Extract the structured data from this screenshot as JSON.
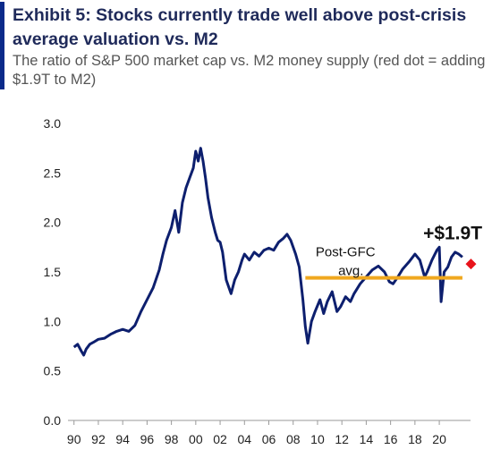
{
  "exhibit": {
    "title": "Exhibit 5: Stocks currently trade well above post-crisis average valuation vs. M2",
    "subtitle": "The ratio of S&P 500 market cap vs. M2 money supply (red dot = adding $1.9T to M2)",
    "accent_color": "#0b2a8a"
  },
  "chart_data": {
    "type": "line",
    "title": "",
    "xlabel": "",
    "ylabel": "",
    "xlim": [
      1989.8,
      2023.3
    ],
    "ylim": [
      0,
      3.0
    ],
    "yticks": [
      0.0,
      0.5,
      1.0,
      1.5,
      2.0,
      2.5,
      3.0
    ],
    "ytick_labels": [
      "0.0",
      "0.5",
      "1.0",
      "1.5",
      "2.0",
      "2.5",
      "3.0"
    ],
    "xticks": [
      1990,
      1992,
      1994,
      1996,
      1998,
      2000,
      2002,
      2004,
      2006,
      2008,
      2010,
      2012,
      2014,
      2016,
      2018,
      2020
    ],
    "xtick_labels": [
      "90",
      "92",
      "94",
      "96",
      "98",
      "00",
      "02",
      "04",
      "06",
      "08",
      "10",
      "12",
      "14",
      "16",
      "18",
      "20"
    ],
    "grid": false,
    "series": [
      {
        "name": "",
        "color": "#0d1f6e",
        "points": [
          [
            1990.0,
            0.74
          ],
          [
            1990.3,
            0.77
          ],
          [
            1990.6,
            0.7
          ],
          [
            1990.8,
            0.66
          ],
          [
            1991.0,
            0.72
          ],
          [
            1991.3,
            0.77
          ],
          [
            1991.6,
            0.79
          ],
          [
            1992.0,
            0.82
          ],
          [
            1992.5,
            0.83
          ],
          [
            1993.0,
            0.87
          ],
          [
            1993.5,
            0.9
          ],
          [
            1994.0,
            0.92
          ],
          [
            1994.5,
            0.9
          ],
          [
            1995.0,
            0.96
          ],
          [
            1995.5,
            1.1
          ],
          [
            1996.0,
            1.22
          ],
          [
            1996.5,
            1.34
          ],
          [
            1997.0,
            1.52
          ],
          [
            1997.3,
            1.68
          ],
          [
            1997.6,
            1.82
          ],
          [
            1998.0,
            1.95
          ],
          [
            1998.3,
            2.12
          ],
          [
            1998.6,
            1.9
          ],
          [
            1998.9,
            2.2
          ],
          [
            1999.2,
            2.35
          ],
          [
            1999.5,
            2.45
          ],
          [
            1999.8,
            2.55
          ],
          [
            2000.0,
            2.72
          ],
          [
            2000.2,
            2.62
          ],
          [
            2000.4,
            2.75
          ],
          [
            2000.6,
            2.62
          ],
          [
            2000.8,
            2.45
          ],
          [
            2001.0,
            2.25
          ],
          [
            2001.3,
            2.05
          ],
          [
            2001.6,
            1.9
          ],
          [
            2001.8,
            1.82
          ],
          [
            2002.0,
            1.8
          ],
          [
            2002.2,
            1.7
          ],
          [
            2002.5,
            1.42
          ],
          [
            2002.7,
            1.35
          ],
          [
            2002.9,
            1.28
          ],
          [
            2003.2,
            1.42
          ],
          [
            2003.5,
            1.5
          ],
          [
            2003.8,
            1.62
          ],
          [
            2004.0,
            1.68
          ],
          [
            2004.4,
            1.62
          ],
          [
            2004.8,
            1.7
          ],
          [
            2005.2,
            1.66
          ],
          [
            2005.6,
            1.72
          ],
          [
            2006.0,
            1.74
          ],
          [
            2006.4,
            1.72
          ],
          [
            2006.8,
            1.8
          ],
          [
            2007.2,
            1.84
          ],
          [
            2007.5,
            1.88
          ],
          [
            2007.8,
            1.82
          ],
          [
            2008.2,
            1.68
          ],
          [
            2008.5,
            1.55
          ],
          [
            2008.8,
            1.22
          ],
          [
            2009.0,
            0.95
          ],
          [
            2009.2,
            0.78
          ],
          [
            2009.5,
            1.0
          ],
          [
            2009.8,
            1.1
          ],
          [
            2010.2,
            1.22
          ],
          [
            2010.5,
            1.08
          ],
          [
            2010.8,
            1.2
          ],
          [
            2011.2,
            1.3
          ],
          [
            2011.6,
            1.1
          ],
          [
            2011.9,
            1.15
          ],
          [
            2012.3,
            1.25
          ],
          [
            2012.7,
            1.2
          ],
          [
            2013.0,
            1.28
          ],
          [
            2013.5,
            1.38
          ],
          [
            2014.0,
            1.45
          ],
          [
            2014.5,
            1.52
          ],
          [
            2015.0,
            1.56
          ],
          [
            2015.5,
            1.5
          ],
          [
            2015.9,
            1.4
          ],
          [
            2016.2,
            1.38
          ],
          [
            2016.6,
            1.45
          ],
          [
            2017.0,
            1.53
          ],
          [
            2017.5,
            1.6
          ],
          [
            2018.0,
            1.68
          ],
          [
            2018.4,
            1.62
          ],
          [
            2018.8,
            1.45
          ],
          [
            2019.0,
            1.5
          ],
          [
            2019.4,
            1.62
          ],
          [
            2019.8,
            1.72
          ],
          [
            2020.0,
            1.75
          ],
          [
            2020.15,
            1.2
          ],
          [
            2020.4,
            1.5
          ],
          [
            2020.7,
            1.55
          ],
          [
            2021.0,
            1.65
          ],
          [
            2021.3,
            1.7
          ],
          [
            2021.6,
            1.68
          ],
          [
            2021.9,
            1.65
          ]
        ]
      }
    ],
    "reference_line": {
      "label": "Post-GFC avg.",
      "value": 1.44,
      "x_start": 2009.0,
      "x_end": 2021.9,
      "color": "#f0a81e"
    },
    "red_marker": {
      "x": 2022.6,
      "y": 1.58,
      "color": "#e8131b",
      "label": "+$1.9T"
    }
  }
}
